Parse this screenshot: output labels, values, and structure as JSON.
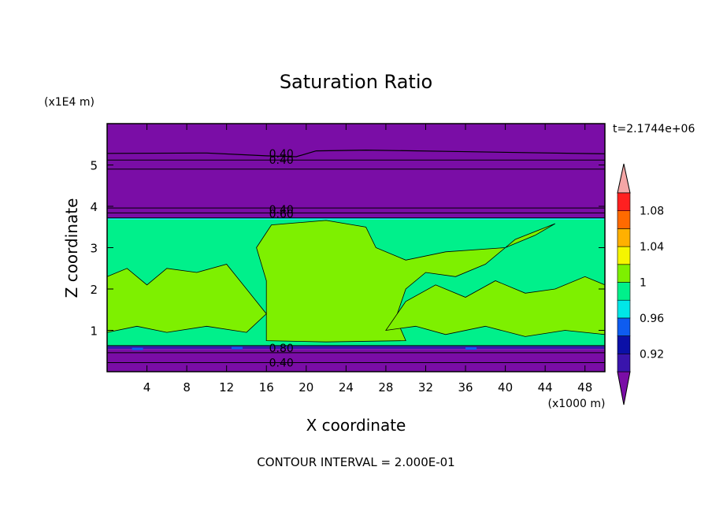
{
  "chart_data": {
    "type": "heatmap",
    "title": "Saturation Ratio",
    "xlabel": "X coordinate",
    "ylabel": "Z coordinate",
    "x_unit": "(x1000 m)",
    "y_unit": "(x1E4 m)",
    "time_label": "t=2.1744e+06",
    "footer": "CONTOUR INTERVAL = 2.000E-01",
    "xlim": [
      0,
      50
    ],
    "ylim": [
      0,
      6
    ],
    "x_ticks": [
      "4",
      "8",
      "12",
      "16",
      "20",
      "24",
      "28",
      "32",
      "36",
      "40",
      "44",
      "48"
    ],
    "y_ticks": [
      "1",
      "2",
      "3",
      "4",
      "5"
    ],
    "colorbar": {
      "levels": [
        "0.92",
        "0.96",
        "1",
        "1.04",
        "1.08"
      ],
      "colors": [
        "#7a0da6",
        "#3914ac",
        "#0b10a7",
        "#0e5cf0",
        "#00e7e7",
        "#00f08b",
        "#7ef000",
        "#f5f500",
        "#ffb000",
        "#ff6a00",
        "#ff2020",
        "#f4a6a6"
      ]
    },
    "contour_labels": [
      {
        "text": "0.40",
        "x": 17.5,
        "y": 5.28
      },
      {
        "text": "0.40",
        "x": 17.5,
        "y": 5.12
      },
      {
        "text": "0.40",
        "x": 17.5,
        "y": 3.92
      },
      {
        "text": "0.60",
        "x": 17.5,
        "y": 3.82
      },
      {
        "text": "0.80",
        "x": 17.5,
        "y": 0.57
      },
      {
        "text": "0.40",
        "x": 17.5,
        "y": 0.22
      }
    ]
  }
}
